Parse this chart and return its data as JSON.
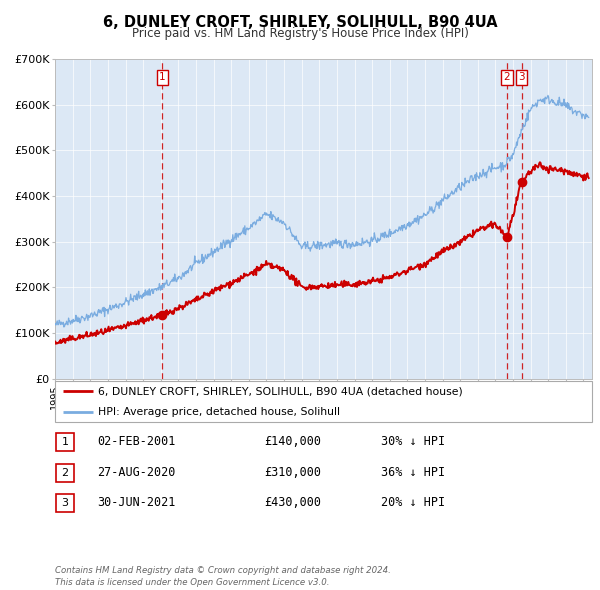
{
  "title": "6, DUNLEY CROFT, SHIRLEY, SOLIHULL, B90 4UA",
  "subtitle": "Price paid vs. HM Land Registry's House Price Index (HPI)",
  "ylim": [
    0,
    700000
  ],
  "yticks": [
    0,
    100000,
    200000,
    300000,
    400000,
    500000,
    600000,
    700000
  ],
  "ytick_labels": [
    "£0",
    "£100K",
    "£200K",
    "£300K",
    "£400K",
    "£500K",
    "£600K",
    "£700K"
  ],
  "xlim_start": 1995.0,
  "xlim_end": 2025.5,
  "plot_bg_color": "#dce8f5",
  "red_line_color": "#cc0000",
  "blue_line_color": "#7aace0",
  "vline_color": "#cc0000",
  "sale_points": [
    {
      "year": 2001.085,
      "value": 140000,
      "label": "1"
    },
    {
      "year": 2020.66,
      "value": 310000,
      "label": "2"
    },
    {
      "year": 2021.495,
      "value": 430000,
      "label": "3"
    }
  ],
  "vline_years": [
    2001.085,
    2020.66,
    2021.495
  ],
  "legend_line1": "6, DUNLEY CROFT, SHIRLEY, SOLIHULL, B90 4UA (detached house)",
  "legend_line2": "HPI: Average price, detached house, Solihull",
  "table_rows": [
    {
      "num": "1",
      "date": "02-FEB-2001",
      "price": "£140,000",
      "hpi": "30% ↓ HPI"
    },
    {
      "num": "2",
      "date": "27-AUG-2020",
      "price": "£310,000",
      "hpi": "36% ↓ HPI"
    },
    {
      "num": "3",
      "date": "30-JUN-2021",
      "price": "£430,000",
      "hpi": "20% ↓ HPI"
    }
  ],
  "footer": "Contains HM Land Registry data © Crown copyright and database right 2024.\nThis data is licensed under the Open Government Licence v3.0."
}
